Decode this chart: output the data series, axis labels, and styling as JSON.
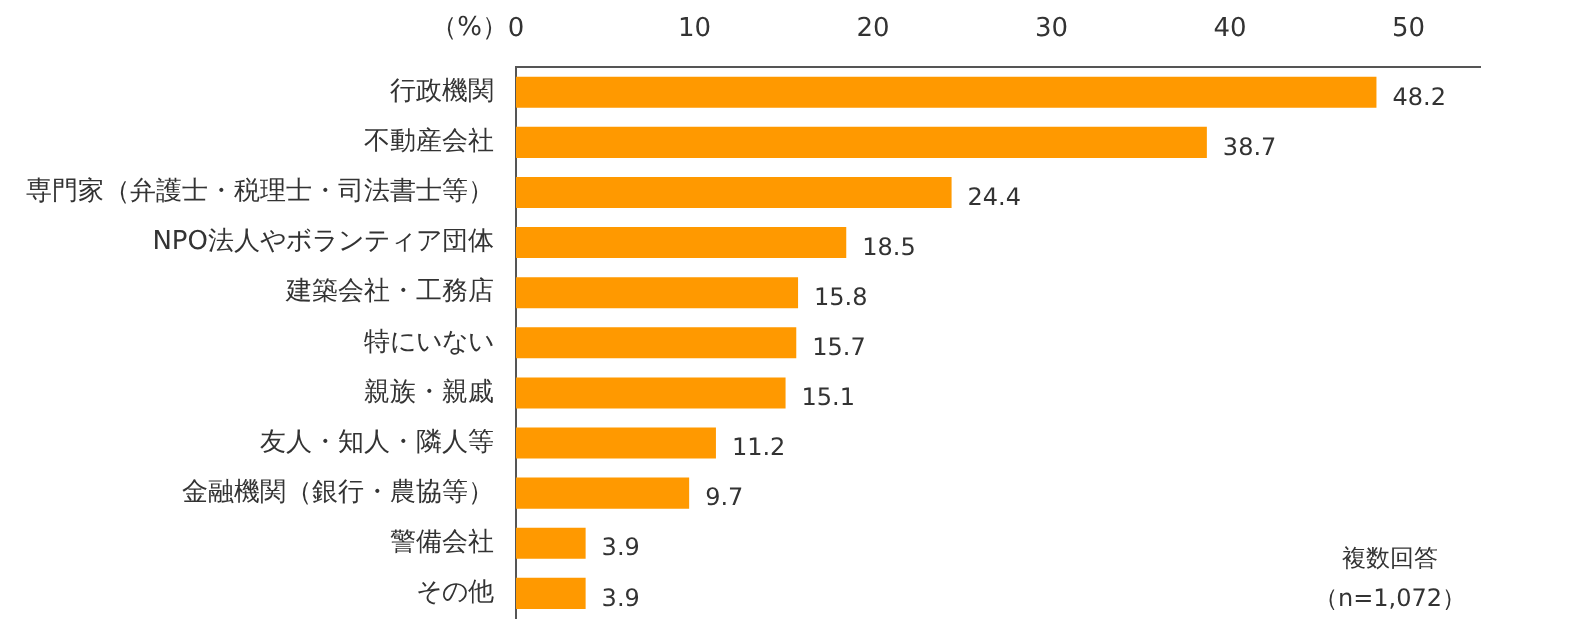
{
  "chart_data": {
    "type": "bar",
    "orientation": "horizontal",
    "xlabel": "（%）",
    "categories": [
      "行政機関",
      "不動産会社",
      "専門家（弁護士・税理士・司法書士等）",
      "NPO法人やボランティア団体",
      "建築会社・工務店",
      "特にいない",
      "親族・親戚",
      "友人・知人・隣人等",
      "金融機関（銀行・農協等）",
      "警備会社",
      "その他"
    ],
    "values": [
      48.2,
      38.7,
      24.4,
      18.5,
      15.8,
      15.7,
      15.1,
      11.2,
      9.7,
      3.9,
      3.9
    ],
    "color": "#ff9900",
    "xlim": [
      0,
      54
    ],
    "xticks": [
      0,
      10,
      20,
      30,
      40,
      50
    ],
    "grid": false,
    "data_labels": true,
    "annotations": [
      "複数回答",
      "（n=1,072）"
    ]
  }
}
